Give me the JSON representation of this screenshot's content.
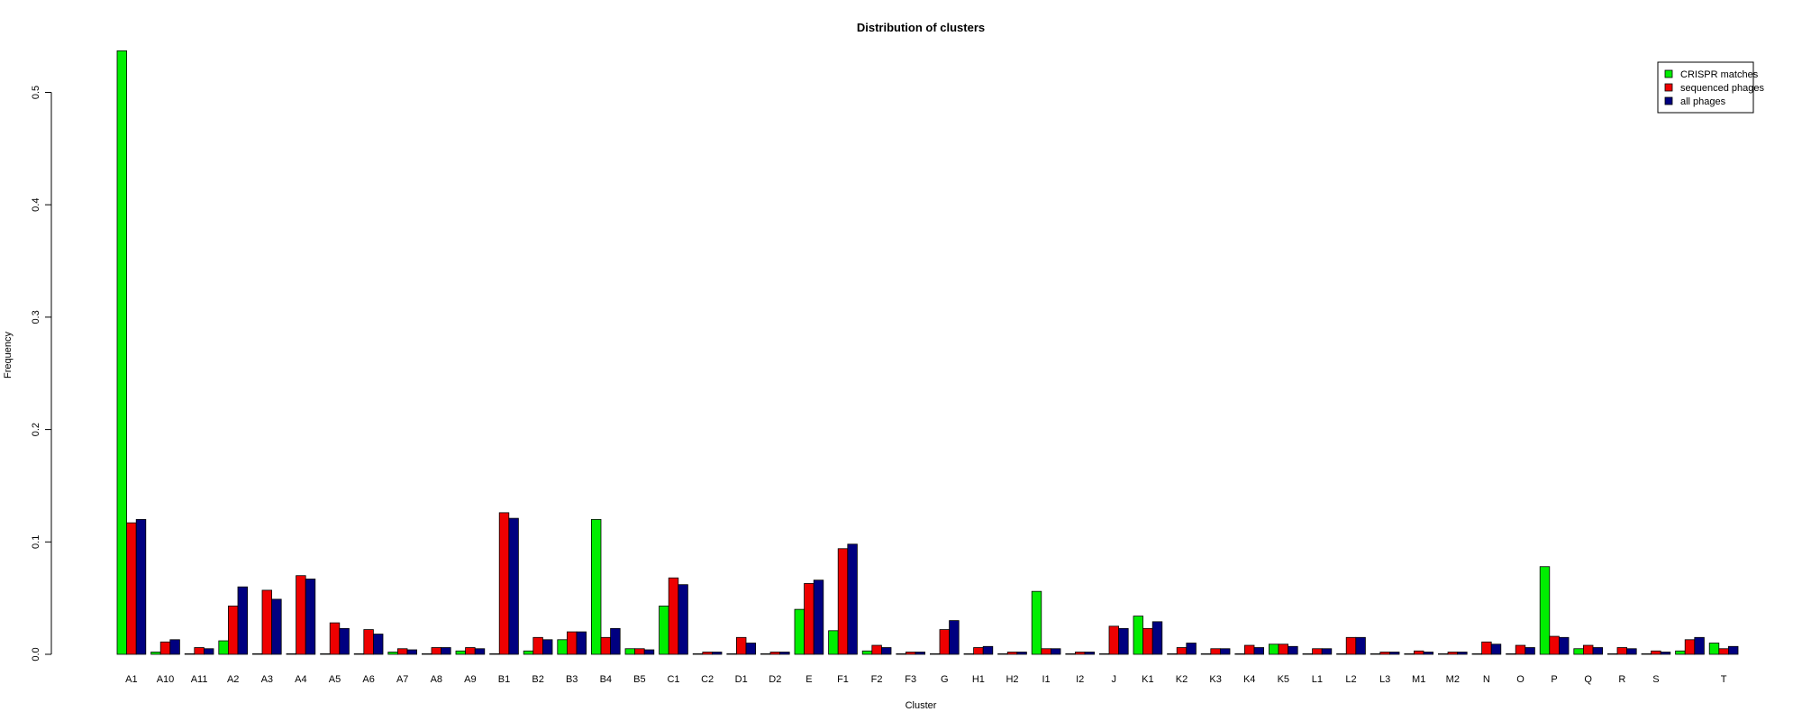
{
  "chart_data": {
    "type": "bar",
    "title": "Distribution of clusters",
    "xlabel": "Cluster",
    "ylabel": "Frequency",
    "ylim": [
      0,
      0.54
    ],
    "yticks": [
      0.0,
      0.1,
      0.2,
      0.3,
      0.4,
      0.5
    ],
    "ytick_labels": [
      "0.0",
      "0.1",
      "0.2",
      "0.3",
      "0.4",
      "0.5"
    ],
    "grid": false,
    "legend_position": "top-right",
    "categories": [
      "A1",
      "A10",
      "A11",
      "A2",
      "A3",
      "A4",
      "A5",
      "A6",
      "A7",
      "A8",
      "A9",
      "B1",
      "B2",
      "B3",
      "B4",
      "B5",
      "C1",
      "C2",
      "D1",
      "D2",
      "E",
      "F1",
      "F2",
      "F3",
      "G",
      "H1",
      "H2",
      "I1",
      "I2",
      "J",
      "K1",
      "K2",
      "K3",
      "K4",
      "K5",
      "L1",
      "L2",
      "L3",
      "M1",
      "M2",
      "N",
      "O",
      "P",
      "Q",
      "R",
      "S",
      "",
      "T"
    ],
    "series": [
      {
        "name": "CRISPR matches",
        "color": "#00ee00",
        "values": [
          0.537,
          0.002,
          0.0,
          0.012,
          0.0,
          0.0,
          0.0,
          0.0,
          0.002,
          0.0,
          0.003,
          0.0,
          0.003,
          0.013,
          0.12,
          0.005,
          0.043,
          0.0,
          0.0,
          0.0,
          0.04,
          0.021,
          0.003,
          0.0,
          0.0,
          0.0,
          0.0,
          0.056,
          0.0,
          0.0,
          0.034,
          0.0,
          0.0,
          0.0,
          0.009,
          0.0,
          0.0,
          0.0,
          0.0,
          0.0,
          0.0,
          0.0,
          0.078,
          0.005,
          0.0,
          0.0,
          0.003,
          0.01
        ]
      },
      {
        "name": "sequenced phages",
        "color": "#ee0000",
        "values": [
          0.117,
          0.011,
          0.006,
          0.043,
          0.057,
          0.07,
          0.028,
          0.022,
          0.005,
          0.006,
          0.006,
          0.126,
          0.015,
          0.02,
          0.015,
          0.005,
          0.068,
          0.002,
          0.015,
          0.002,
          0.063,
          0.094,
          0.008,
          0.002,
          0.022,
          0.006,
          0.002,
          0.005,
          0.002,
          0.025,
          0.023,
          0.006,
          0.005,
          0.008,
          0.009,
          0.005,
          0.015,
          0.002,
          0.003,
          0.002,
          0.011,
          0.008,
          0.016,
          0.008,
          0.006,
          0.003,
          0.013,
          0.005
        ]
      },
      {
        "name": "all phages",
        "color": "#000080",
        "values": [
          0.12,
          0.013,
          0.005,
          0.06,
          0.049,
          0.067,
          0.023,
          0.018,
          0.004,
          0.006,
          0.005,
          0.121,
          0.013,
          0.02,
          0.023,
          0.004,
          0.062,
          0.002,
          0.01,
          0.002,
          0.066,
          0.098,
          0.006,
          0.002,
          0.03,
          0.007,
          0.002,
          0.005,
          0.002,
          0.023,
          0.029,
          0.01,
          0.005,
          0.006,
          0.007,
          0.005,
          0.015,
          0.002,
          0.002,
          0.002,
          0.009,
          0.006,
          0.015,
          0.006,
          0.005,
          0.002,
          0.015,
          0.007
        ]
      }
    ]
  }
}
